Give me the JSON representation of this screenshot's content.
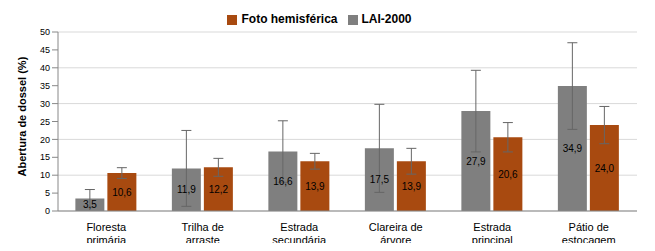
{
  "chart_data": {
    "type": "bar",
    "y_label": "Abertura de dossel (%)",
    "categories": [
      "Floresta primária",
      "Trilha de arraste",
      "Estrada secundária",
      "Clareira de árvore",
      "Estrada principal",
      "Pátio de estocagem"
    ],
    "series": [
      {
        "name": "LAI-2000",
        "color": "#7f7f7f",
        "values": [
          3.5,
          11.9,
          16.6,
          17.5,
          27.9,
          34.9
        ],
        "value_labels": [
          "3,5",
          "11,9",
          "16,6",
          "17,5",
          "27,9",
          "34,9"
        ],
        "errors": [
          2.5,
          10.6,
          8.6,
          12.3,
          11.4,
          12.1
        ]
      },
      {
        "name": "Foto hemisférica",
        "color": "#a84a10",
        "values": [
          10.6,
          12.2,
          13.9,
          13.9,
          20.6,
          24.0
        ],
        "value_labels": [
          "10,6",
          "12,2",
          "13,9",
          "13,9",
          "20,6",
          "24,0"
        ],
        "errors": [
          1.5,
          2.5,
          2.2,
          3.6,
          4.1,
          5.2
        ]
      }
    ],
    "ylim": [
      0,
      50
    ],
    "yticks": [
      0,
      5,
      10,
      15,
      20,
      25,
      30,
      35,
      40,
      45,
      50
    ],
    "grid": true,
    "legend": "top",
    "data_labels": true
  }
}
